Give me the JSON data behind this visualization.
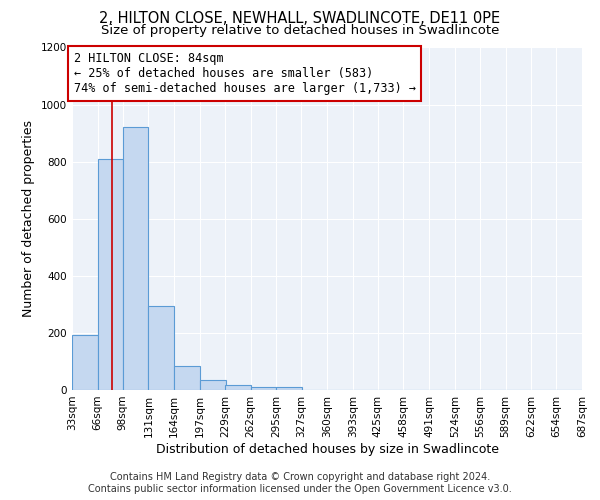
{
  "title": "2, HILTON CLOSE, NEWHALL, SWADLINCOTE, DE11 0PE",
  "subtitle": "Size of property relative to detached houses in Swadlincote",
  "xlabel": "Distribution of detached houses by size in Swadlincote",
  "ylabel": "Number of detached properties",
  "bar_left_edges": [
    33,
    66,
    98,
    131,
    164,
    197,
    229,
    262,
    295,
    327,
    360,
    393,
    425,
    458,
    491,
    524,
    556,
    589,
    622,
    654
  ],
  "bar_heights": [
    193,
    810,
    920,
    295,
    85,
    35,
    18,
    12,
    10,
    0,
    0,
    0,
    0,
    0,
    0,
    0,
    0,
    0,
    0,
    0
  ],
  "bin_width": 33,
  "tick_labels": [
    "33sqm",
    "66sqm",
    "98sqm",
    "131sqm",
    "164sqm",
    "197sqm",
    "229sqm",
    "262sqm",
    "295sqm",
    "327sqm",
    "360sqm",
    "393sqm",
    "425sqm",
    "458sqm",
    "491sqm",
    "524sqm",
    "556sqm",
    "589sqm",
    "622sqm",
    "654sqm",
    "687sqm"
  ],
  "ylim": [
    0,
    1200
  ],
  "yticks": [
    0,
    200,
    400,
    600,
    800,
    1000,
    1200
  ],
  "bar_color": "#c5d8f0",
  "bar_edge_color": "#5b9bd5",
  "red_line_x": 84,
  "annotation_title": "2 HILTON CLOSE: 84sqm",
  "annotation_line1": "← 25% of detached houses are smaller (583)",
  "annotation_line2": "74% of semi-detached houses are larger (1,733) →",
  "annotation_box_color": "#ffffff",
  "annotation_box_edge_color": "#cc0000",
  "footer_line1": "Contains HM Land Registry data © Crown copyright and database right 2024.",
  "footer_line2": "Contains public sector information licensed under the Open Government Licence v3.0.",
  "background_color": "#ffffff",
  "plot_bg_color": "#edf2f9",
  "grid_color": "#ffffff",
  "title_fontsize": 10.5,
  "subtitle_fontsize": 9.5,
  "axis_label_fontsize": 9,
  "tick_fontsize": 7.5,
  "annotation_fontsize": 8.5,
  "footer_fontsize": 7
}
